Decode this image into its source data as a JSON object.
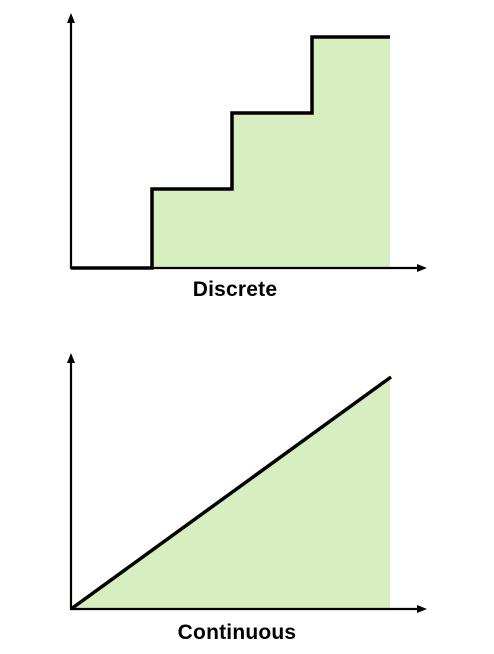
{
  "diagrams": [
    {
      "id": "discrete",
      "label": "Discrete",
      "shape": "staircase",
      "steps": [
        1,
        2,
        3
      ]
    },
    {
      "id": "continuous",
      "label": "Continuous",
      "shape": "linear-ramp"
    }
  ],
  "colors": {
    "fill": "#d7eec1",
    "stroke": "#000000",
    "background": "#ffffff"
  }
}
